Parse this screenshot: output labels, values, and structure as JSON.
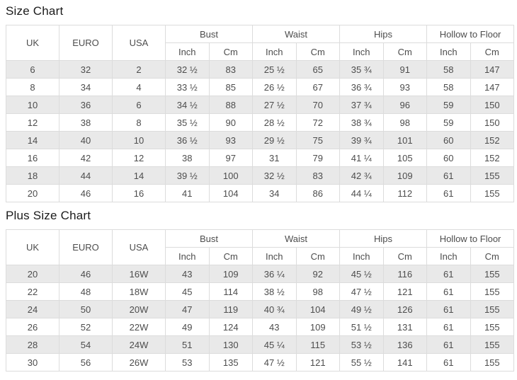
{
  "colors": {
    "stripe_row": "#e9e9e9",
    "border": "#dcdcdc",
    "cell_text": "#4d4d4d",
    "title_text": "#1b1b1b",
    "header_background": "#ffffff"
  },
  "tables": [
    {
      "title": "Size Chart",
      "simple_columns": [
        "UK",
        "EURO",
        "USA"
      ],
      "group_columns": [
        "Bust",
        "Waist",
        "Hips",
        "Hollow to Floor"
      ],
      "sub_columns": [
        "Inch",
        "Cm"
      ],
      "rows": [
        [
          "6",
          "32",
          "2",
          "32 ½",
          "83",
          "25 ½",
          "65",
          "35 ¾",
          "91",
          "58",
          "147"
        ],
        [
          "8",
          "34",
          "4",
          "33 ½",
          "85",
          "26 ½",
          "67",
          "36 ¾",
          "93",
          "58",
          "147"
        ],
        [
          "10",
          "36",
          "6",
          "34 ½",
          "88",
          "27 ½",
          "70",
          "37 ¾",
          "96",
          "59",
          "150"
        ],
        [
          "12",
          "38",
          "8",
          "35 ½",
          "90",
          "28 ½",
          "72",
          "38 ¾",
          "98",
          "59",
          "150"
        ],
        [
          "14",
          "40",
          "10",
          "36 ½",
          "93",
          "29 ½",
          "75",
          "39 ¾",
          "101",
          "60",
          "152"
        ],
        [
          "16",
          "42",
          "12",
          "38",
          "97",
          "31",
          "79",
          "41 ¼",
          "105",
          "60",
          "152"
        ],
        [
          "18",
          "44",
          "14",
          "39 ½",
          "100",
          "32 ½",
          "83",
          "42 ¾",
          "109",
          "61",
          "155"
        ],
        [
          "20",
          "46",
          "16",
          "41",
          "104",
          "34",
          "86",
          "44 ¼",
          "112",
          "61",
          "155"
        ]
      ]
    },
    {
      "title": "Plus Size Chart",
      "simple_columns": [
        "UK",
        "EURO",
        "USA"
      ],
      "group_columns": [
        "Bust",
        "Waist",
        "Hips",
        "Hollow to Floor"
      ],
      "sub_columns": [
        "Inch",
        "Cm"
      ],
      "rows": [
        [
          "20",
          "46",
          "16W",
          "43",
          "109",
          "36 ¼",
          "92",
          "45 ½",
          "116",
          "61",
          "155"
        ],
        [
          "22",
          "48",
          "18W",
          "45",
          "114",
          "38 ½",
          "98",
          "47 ½",
          "121",
          "61",
          "155"
        ],
        [
          "24",
          "50",
          "20W",
          "47",
          "119",
          "40 ¾",
          "104",
          "49 ½",
          "126",
          "61",
          "155"
        ],
        [
          "26",
          "52",
          "22W",
          "49",
          "124",
          "43",
          "109",
          "51 ½",
          "131",
          "61",
          "155"
        ],
        [
          "28",
          "54",
          "24W",
          "51",
          "130",
          "45 ¼",
          "115",
          "53 ½",
          "136",
          "61",
          "155"
        ],
        [
          "30",
          "56",
          "26W",
          "53",
          "135",
          "47 ½",
          "121",
          "55 ½",
          "141",
          "61",
          "155"
        ]
      ]
    }
  ]
}
